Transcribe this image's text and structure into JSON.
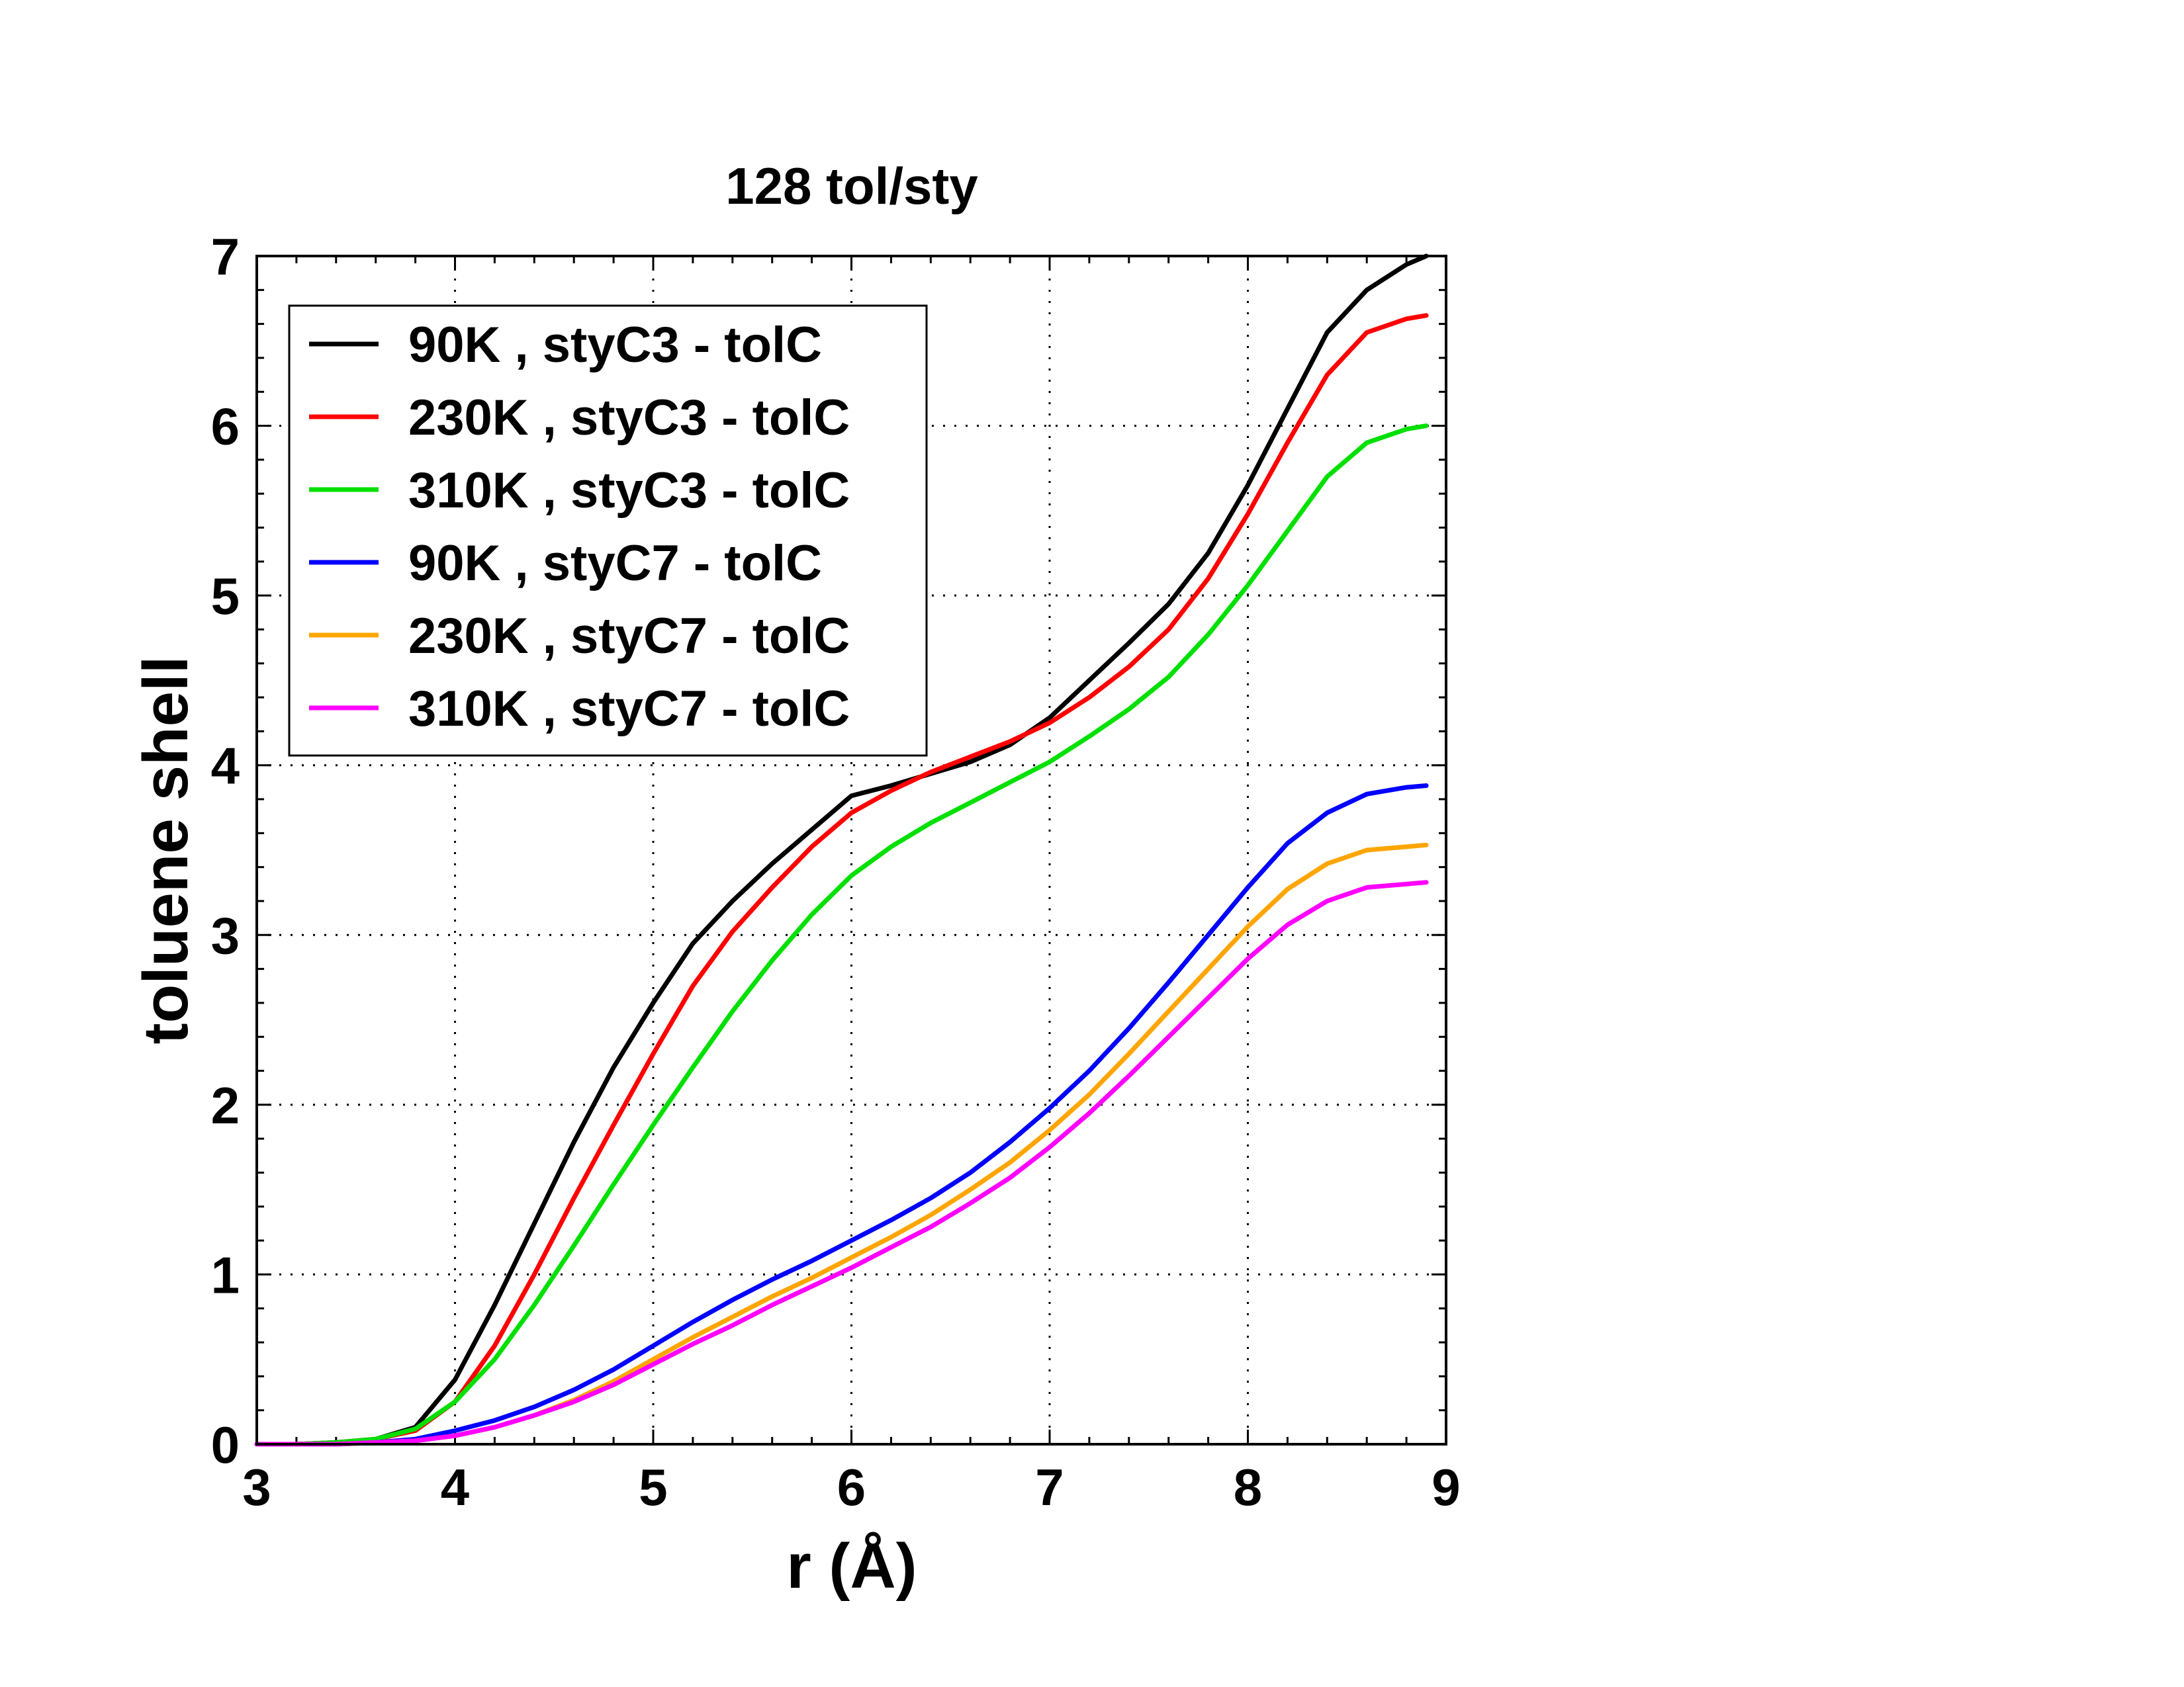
{
  "chart_data": {
    "type": "line",
    "title": "128 tol/sty",
    "xlabel": "r (Å)",
    "ylabel": "toluene shell",
    "xlim": [
      3,
      9
    ],
    "ylim": [
      0,
      7
    ],
    "xticks": [
      "3",
      "4",
      "5",
      "6",
      "7",
      "8",
      "9"
    ],
    "yticks": [
      "0",
      "1",
      "2",
      "3",
      "4",
      "5",
      "6",
      "7"
    ],
    "grid": "dotted",
    "legend_position": "top-left",
    "x": [
      3.0,
      3.2,
      3.4,
      3.6,
      3.8,
      4.0,
      4.2,
      4.4,
      4.6,
      4.8,
      5.0,
      5.2,
      5.4,
      5.6,
      5.8,
      6.0,
      6.2,
      6.4,
      6.6,
      6.8,
      7.0,
      7.2,
      7.4,
      7.6,
      7.8,
      8.0,
      8.2,
      8.4,
      8.6,
      8.8,
      8.9
    ],
    "series": [
      {
        "name": "90K , styC3 - tolC",
        "color": "#000000",
        "values": [
          0.0,
          0.0,
          0.01,
          0.03,
          0.1,
          0.38,
          0.82,
          1.3,
          1.78,
          2.22,
          2.6,
          2.95,
          3.2,
          3.42,
          3.62,
          3.82,
          3.88,
          3.95,
          4.02,
          4.12,
          4.28,
          4.5,
          4.72,
          4.95,
          5.25,
          5.65,
          6.1,
          6.55,
          6.8,
          6.95,
          7.0
        ]
      },
      {
        "name": "230K , styC3 - tolC",
        "color": "#ff0000",
        "values": [
          0.0,
          0.0,
          0.01,
          0.03,
          0.08,
          0.25,
          0.58,
          1.0,
          1.45,
          1.88,
          2.3,
          2.7,
          3.02,
          3.28,
          3.52,
          3.72,
          3.85,
          3.96,
          4.05,
          4.14,
          4.25,
          4.4,
          4.58,
          4.8,
          5.1,
          5.48,
          5.9,
          6.3,
          6.55,
          6.63,
          6.65
        ]
      },
      {
        "name": "310K , styC3 - tolC",
        "color": "#00e000",
        "values": [
          0.0,
          0.0,
          0.01,
          0.03,
          0.09,
          0.25,
          0.5,
          0.82,
          1.17,
          1.53,
          1.88,
          2.22,
          2.55,
          2.85,
          3.12,
          3.35,
          3.52,
          3.66,
          3.78,
          3.9,
          4.02,
          4.17,
          4.33,
          4.52,
          4.77,
          5.06,
          5.38,
          5.7,
          5.9,
          5.98,
          6.0
        ]
      },
      {
        "name": "90K , styC7 - tolC",
        "color": "#0000ff",
        "values": [
          0.0,
          0.0,
          0.0,
          0.01,
          0.03,
          0.08,
          0.14,
          0.22,
          0.32,
          0.44,
          0.58,
          0.72,
          0.85,
          0.97,
          1.08,
          1.2,
          1.32,
          1.45,
          1.6,
          1.78,
          1.98,
          2.2,
          2.45,
          2.72,
          3.0,
          3.28,
          3.54,
          3.72,
          3.83,
          3.87,
          3.88
        ]
      },
      {
        "name": "230K , styC7 - tolC",
        "color": "#ffa500",
        "values": [
          0.0,
          0.0,
          0.0,
          0.01,
          0.02,
          0.05,
          0.1,
          0.17,
          0.26,
          0.37,
          0.5,
          0.63,
          0.75,
          0.87,
          0.98,
          1.1,
          1.22,
          1.35,
          1.5,
          1.66,
          1.85,
          2.06,
          2.3,
          2.55,
          2.8,
          3.05,
          3.27,
          3.42,
          3.5,
          3.52,
          3.53
        ]
      },
      {
        "name": "310K , styC7 - tolC",
        "color": "#ff00ff",
        "values": [
          0.0,
          0.0,
          0.0,
          0.01,
          0.02,
          0.05,
          0.1,
          0.17,
          0.25,
          0.35,
          0.47,
          0.59,
          0.7,
          0.82,
          0.93,
          1.04,
          1.16,
          1.28,
          1.42,
          1.57,
          1.75,
          1.95,
          2.17,
          2.4,
          2.63,
          2.86,
          3.06,
          3.2,
          3.28,
          3.3,
          3.31
        ]
      }
    ]
  }
}
